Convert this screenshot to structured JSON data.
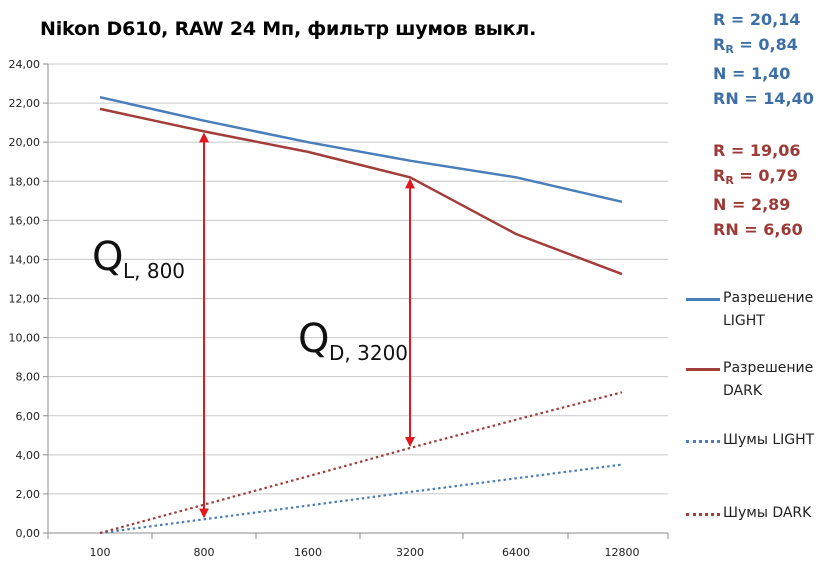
{
  "chart_data": {
    "type": "line",
    "title": "Nikon D610, RAW 24 Мп, фильтр шумов выкл.",
    "xlabel": "",
    "ylabel": "",
    "categories": [
      "100",
      "800",
      "1600",
      "3200",
      "6400",
      "12800"
    ],
    "ylim": [
      0,
      24
    ],
    "ytick_labels": [
      "0,00",
      "2,00",
      "4,00",
      "6,00",
      "8,00",
      "10,00",
      "12,00",
      "14,00",
      "16,00",
      "18,00",
      "20,00",
      "22,00",
      "24,00"
    ],
    "grid": "horizontal",
    "legend_position": "right",
    "series": [
      {
        "name": "Разрешение LIGHT",
        "color": "#4a7ebb",
        "style": "solid",
        "values": [
          22.3,
          21.1,
          20.0,
          19.05,
          18.2,
          16.95
        ]
      },
      {
        "name": "Разрешение DARK",
        "color": "#a23d3a",
        "style": "solid",
        "values": [
          21.7,
          20.55,
          19.5,
          18.2,
          15.3,
          13.25
        ]
      },
      {
        "name": "Шумы LIGHT",
        "color": "#4a7ebb",
        "style": "dotted",
        "values": [
          0.0,
          0.7,
          1.4,
          2.1,
          2.8,
          3.5
        ]
      },
      {
        "name": "Шумы DARK",
        "color": "#a23d3a",
        "style": "dotted",
        "values": [
          0.0,
          1.45,
          2.9,
          4.35,
          5.8,
          7.2
        ]
      }
    ],
    "annotations": [
      {
        "main": "Q",
        "sub": "L, 800",
        "arrow_category": "800",
        "arrow_from": 0.7,
        "arrow_to": 20.55
      },
      {
        "main": "Q",
        "sub": "D, 3200",
        "arrow_category": "3200",
        "arrow_from": 4.35,
        "arrow_to": 18.2
      }
    ],
    "arrow_color": "#e3181f"
  },
  "stats": {
    "light": {
      "r": "R = 20,14",
      "rr_prefix": "R",
      "rr_sub": "R",
      "rr_value": " = 0,84",
      "n": "N = 1,40",
      "rn": "RN = 14,40"
    },
    "dark": {
      "r": "R = 19,06",
      "rr_prefix": "R",
      "rr_sub": "R",
      "rr_value": " = 0,79",
      "n": "N = 2,89",
      "rn": "RN = 6,60"
    }
  },
  "legend": [
    {
      "label": "Разрешение\nLIGHT"
    },
    {
      "label": "Разрешение\nDARK"
    },
    {
      "label": "Шумы LIGHT"
    },
    {
      "label": "Шумы DARK"
    }
  ]
}
